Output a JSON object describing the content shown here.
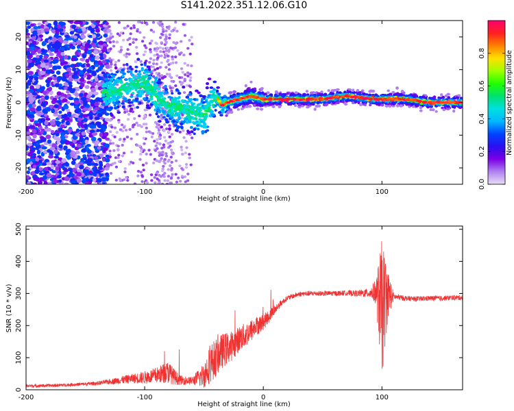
{
  "title": "S141.2022.351.12.06.G10",
  "chart_data": [
    {
      "type": "heatmap",
      "title": "S141.2022.351.12.06.G10",
      "xlabel": "Height of straight line (km)",
      "ylabel": "Frequency (Hz)",
      "xlim": [
        -200,
        168
      ],
      "ylim": [
        -25,
        25
      ],
      "x_ticks": [
        -200,
        -100,
        0,
        100
      ],
      "x_tick_labels": [
        "-200",
        "-100",
        "0",
        "100"
      ],
      "y_ticks": [
        -20,
        -10,
        0,
        10,
        20
      ],
      "y_tick_labels": [
        "-20",
        "-10",
        "0",
        "10",
        "20"
      ],
      "colorbar": {
        "label": "Normalized spectral amplitude",
        "range": [
          0,
          1
        ],
        "ticks": [
          0,
          0.2,
          0.4,
          0.6,
          0.8
        ],
        "tick_labels": [
          "0.0",
          "0.2",
          "0.4",
          "0.6",
          "0.8"
        ],
        "colormap_stops": [
          "#e8dcf6",
          "#b082f0",
          "#7a00e6",
          "#2a0ff0",
          "#0044ff",
          "#00b8ff",
          "#00e0e0",
          "#00e070",
          "#22ff00",
          "#a0ff00",
          "#ffe000",
          "#ff8000",
          "#ff2020",
          "#ff0070"
        ]
      },
      "ridge": {
        "description_points_x": [
          -130,
          -110,
          -100,
          -90,
          -80,
          -70,
          -60,
          -50,
          -40,
          -35,
          -30,
          -20,
          -10,
          0,
          10,
          30,
          50,
          70,
          90,
          100,
          120,
          140,
          168
        ],
        "description_points_y": [
          3,
          5,
          6,
          2,
          -1,
          -2,
          -3,
          -4,
          2,
          -1,
          0,
          1,
          2,
          1,
          1,
          1,
          1,
          2,
          1,
          1,
          1,
          0,
          0
        ]
      },
      "grid": false
    },
    {
      "type": "line",
      "xlabel": "Height of straight line (km)",
      "ylabel": "SNR (10 * v/v)",
      "xlim": [
        -200,
        168
      ],
      "ylim": [
        0,
        510
      ],
      "x_ticks": [
        -200,
        -100,
        0,
        100
      ],
      "x_tick_labels": [
        "-200",
        "-100",
        "0",
        "100"
      ],
      "y_ticks": [
        0,
        100,
        200,
        300,
        400,
        500
      ],
      "y_tick_labels": [
        "0",
        "100",
        "200",
        "300",
        "400",
        "500"
      ],
      "color": "#ee3333",
      "series": [
        {
          "x": [
            -200,
            -180,
            -160,
            -140,
            -130,
            -120,
            -110,
            -100,
            -90,
            -80,
            -75,
            -70,
            -60,
            -50,
            -45,
            -40,
            -35,
            -30,
            -25,
            -20,
            -15,
            -10,
            -5,
            0,
            5,
            10,
            15,
            20,
            30,
            40,
            50,
            60,
            70,
            80,
            90,
            95,
            100,
            105,
            110,
            120,
            130,
            140,
            150,
            160,
            168
          ],
          "y": [
            12,
            13,
            16,
            20,
            25,
            30,
            35,
            38,
            45,
            55,
            40,
            30,
            28,
            45,
            80,
            100,
            120,
            130,
            140,
            160,
            170,
            185,
            200,
            210,
            230,
            250,
            270,
            285,
            298,
            300,
            300,
            300,
            302,
            300,
            302,
            305,
            250,
            300,
            290,
            285,
            283,
            285,
            285,
            287,
            287
          ],
          "noise": [
            5,
            5,
            5,
            6,
            8,
            12,
            15,
            20,
            25,
            35,
            25,
            15,
            12,
            40,
            60,
            60,
            55,
            50,
            45,
            40,
            40,
            35,
            30,
            25,
            20,
            15,
            10,
            8,
            8,
            8,
            8,
            8,
            8,
            10,
            15,
            40,
            220,
            80,
            10,
            8,
            8,
            8,
            8,
            8,
            8
          ]
        }
      ],
      "grid": false
    }
  ]
}
